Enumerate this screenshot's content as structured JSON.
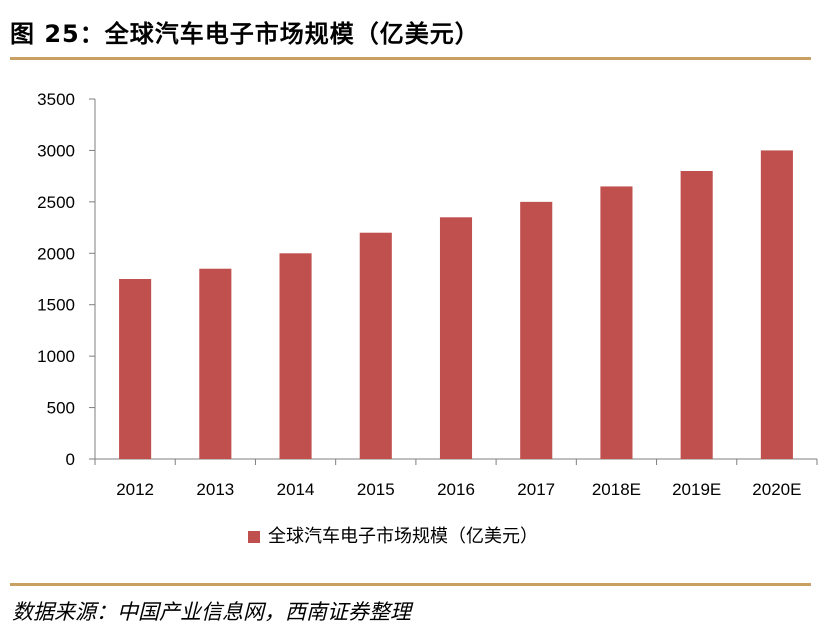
{
  "figure": {
    "title": "图 25：全球汽车电子市场规模（亿美元）",
    "source": "数据来源：中国产业信息网，西南证券整理"
  },
  "colors": {
    "bar": "#C0504D",
    "rule": "#C9A063",
    "axis": "#7F7F7F"
  },
  "chart_data": {
    "type": "bar",
    "title": "",
    "xlabel": "",
    "ylabel": "",
    "categories": [
      "2012",
      "2013",
      "2014",
      "2015",
      "2016",
      "2017",
      "2018E",
      "2019E",
      "2020E"
    ],
    "series": [
      {
        "name": "全球汽车电子市场规模（亿美元）",
        "values": [
          1750,
          1850,
          2000,
          2200,
          2350,
          2500,
          2650,
          2800,
          3000
        ]
      }
    ],
    "ylim": [
      0,
      3500
    ],
    "yticks": [
      0,
      500,
      1000,
      1500,
      2000,
      2500,
      3000,
      3500
    ],
    "grid": false,
    "legend_position": "bottom-center"
  }
}
